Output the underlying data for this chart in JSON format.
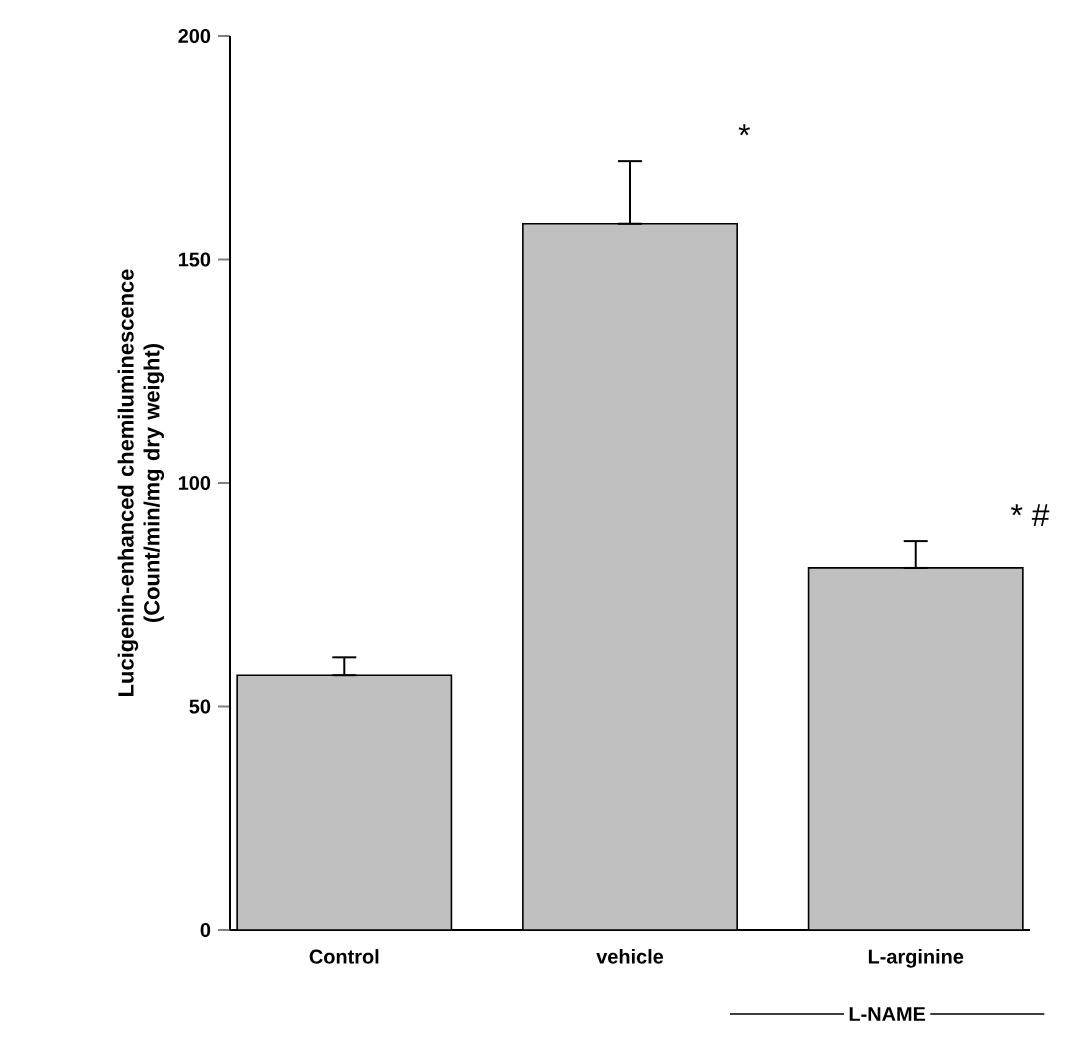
{
  "chart_data": {
    "type": "bar",
    "ylabel": "Lucigenin-enhanced chemiluminescence (Count/min/mg dry weight)",
    "categories": [
      "Control",
      "vehicle",
      "L-arginine"
    ],
    "values": [
      57,
      158,
      81
    ],
    "errors": [
      [
        57,
        61
      ],
      [
        158,
        172
      ],
      [
        81,
        87
      ]
    ],
    "color": "#c0c0c0",
    "ylim": [
      0,
      200
    ],
    "yticks": [
      0,
      50,
      100,
      150,
      200
    ],
    "grid": false,
    "annotations": [
      "*",
      "* #",
      "L-NAME"
    ]
  }
}
